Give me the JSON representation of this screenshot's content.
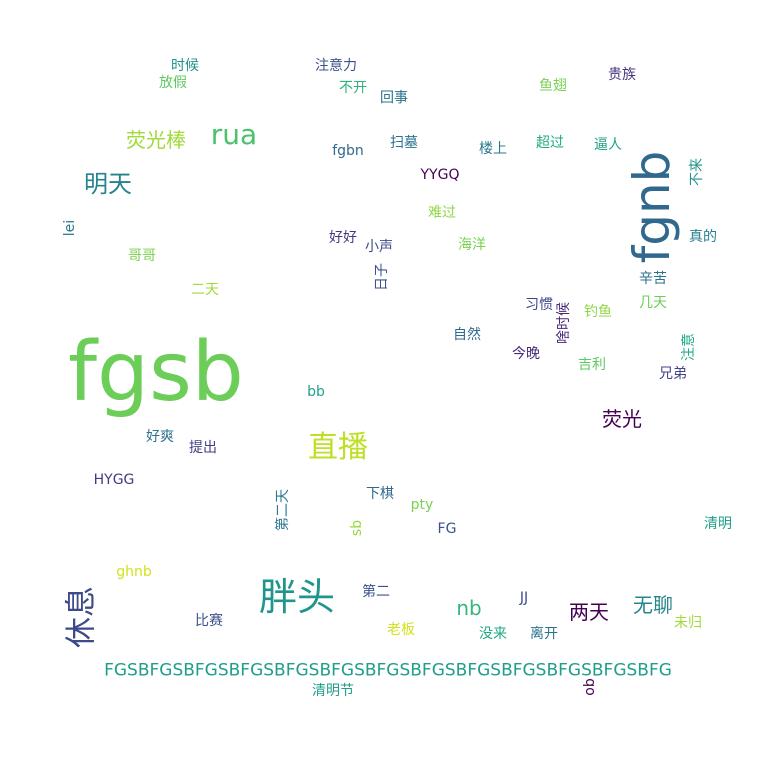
{
  "words": [
    {
      "text": "fgsb",
      "color": "#6ccd59"
    },
    {
      "text": "fgnb",
      "color": "#31688e"
    },
    {
      "text": "FGSBFGSBFGSBFGSBFGSBFGSBFGSBFGSBFGSBFGSBFGSBFGSBFG",
      "color": "#1f9e89"
    },
    {
      "text": "胖头",
      "color": "#1f968b"
    },
    {
      "text": "直播",
      "color": "#bddf26"
    },
    {
      "text": "rua",
      "color": "#4ac16d"
    },
    {
      "text": "休息",
      "color": "#3e4a89"
    },
    {
      "text": "明天",
      "color": "#26828e"
    },
    {
      "text": "荧光棒",
      "color": "#a0da39"
    },
    {
      "text": "荧光",
      "color": "#440154"
    },
    {
      "text": "两天",
      "color": "#440154"
    },
    {
      "text": "无聊",
      "color": "#25858e"
    },
    {
      "text": "nb",
      "color": "#35b779"
    },
    {
      "text": "时候",
      "color": "#21918c"
    },
    {
      "text": "放假",
      "color": "#5ec962"
    },
    {
      "text": "注意力",
      "color": "#3b528b"
    },
    {
      "text": "不开",
      "color": "#2db27d"
    },
    {
      "text": "回事",
      "color": "#2c728e"
    },
    {
      "text": "鱼翅",
      "color": "#7ad151"
    },
    {
      "text": "贵族",
      "color": "#46337e"
    },
    {
      "text": "fgbn",
      "color": "#31688e"
    },
    {
      "text": "扫墓",
      "color": "#2c728e"
    },
    {
      "text": "楼上",
      "color": "#2a788e"
    },
    {
      "text": "超过",
      "color": "#22a884"
    },
    {
      "text": "逼人",
      "color": "#1fa088"
    },
    {
      "text": "不来",
      "color": "#21918c"
    },
    {
      "text": "YYGQ",
      "color": "#440154"
    },
    {
      "text": "真的",
      "color": "#277f8e"
    },
    {
      "text": "lei",
      "color": "#2a788e"
    },
    {
      "text": "难过",
      "color": "#8fd744"
    },
    {
      "text": "好好",
      "color": "#443983"
    },
    {
      "text": "小声",
      "color": "#3e4a89"
    },
    {
      "text": "海洋",
      "color": "#7ad151"
    },
    {
      "text": "辛苦",
      "color": "#2c728e"
    },
    {
      "text": "哥哥",
      "color": "#7ad151"
    },
    {
      "text": "日子",
      "color": "#3b528b"
    },
    {
      "text": "二天",
      "color": "#a0da39"
    },
    {
      "text": "几天",
      "color": "#6ccd59"
    },
    {
      "text": "习惯",
      "color": "#414487"
    },
    {
      "text": "钓鱼",
      "color": "#8fd744"
    },
    {
      "text": "啥时候",
      "color": "#482878"
    },
    {
      "text": "自然",
      "color": "#31688e"
    },
    {
      "text": "注意",
      "color": "#22a884"
    },
    {
      "text": "今晚",
      "color": "#482878"
    },
    {
      "text": "吉利",
      "color": "#5ec962"
    },
    {
      "text": "兄弟",
      "color": "#414487"
    },
    {
      "text": "bb",
      "color": "#1fa188"
    },
    {
      "text": "好爽",
      "color": "#2c728e"
    },
    {
      "text": "提出",
      "color": "#433e85"
    },
    {
      "text": "HYGG",
      "color": "#443983"
    },
    {
      "text": "第二天",
      "color": "#2a788e"
    },
    {
      "text": "下棋",
      "color": "#31688e"
    },
    {
      "text": "pty",
      "color": "#7ad151"
    },
    {
      "text": "sb",
      "color": "#95d840"
    },
    {
      "text": "FG",
      "color": "#3b528b"
    },
    {
      "text": "清明",
      "color": "#1fa088"
    },
    {
      "text": "ghnb",
      "color": "#d2e21b"
    },
    {
      "text": "第二",
      "color": "#3b528b"
    },
    {
      "text": "JJ",
      "color": "#3e4a89"
    },
    {
      "text": "比赛",
      "color": "#3b528b"
    },
    {
      "text": "老板",
      "color": "#d2e21b"
    },
    {
      "text": "没来",
      "color": "#22a884"
    },
    {
      "text": "离开",
      "color": "#2c728e"
    },
    {
      "text": "未归",
      "color": "#a0da39"
    },
    {
      "text": "清明节",
      "color": "#1f9e89"
    },
    {
      "text": "ob",
      "color": "#440154"
    }
  ]
}
